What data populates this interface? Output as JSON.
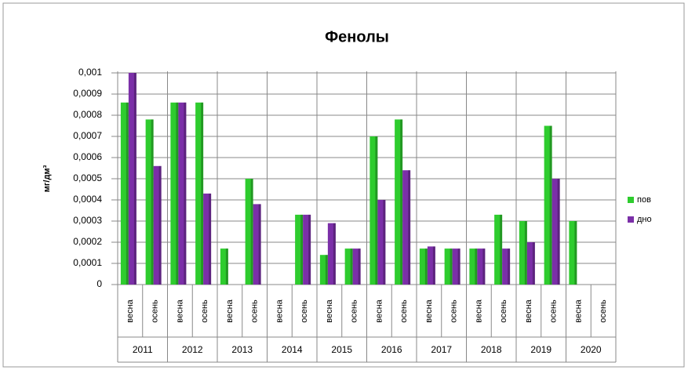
{
  "chart_data": {
    "type": "bar",
    "title": "Фенолы",
    "y_label": "мг/дм³",
    "categories": [
      "весна",
      "осень",
      "весна",
      "осень",
      "весна",
      "осень",
      "весна",
      "осень",
      "весна",
      "осень",
      "весна",
      "осень",
      "весна",
      "осень",
      "весна",
      "осень",
      "весна",
      "осень",
      "весна",
      "осень"
    ],
    "years": [
      "2011",
      "2012",
      "2013",
      "2014",
      "2015",
      "2016",
      "2017",
      "2018",
      "2019",
      "2020"
    ],
    "series": [
      {
        "name": "пов",
        "color": "#2ecc2e",
        "values": [
          0.00086,
          0.00078,
          0.00086,
          0.00086,
          0.00017,
          0.0005,
          0,
          0.00033,
          0.00014,
          0.00017,
          0.0007,
          0.00078,
          0.00017,
          0.00017,
          0.00017,
          0.00033,
          0.0003,
          0.00075,
          0.0003,
          0
        ]
      },
      {
        "name": "дно",
        "color": "#7b2fa8",
        "values": [
          0.001,
          0.00056,
          0.00086,
          0.00043,
          0,
          0.00038,
          0,
          0.00033,
          0.00029,
          0.00017,
          0.0004,
          0.00054,
          0.00018,
          0.00017,
          0.00017,
          0.00017,
          0.0002,
          0.0005,
          0,
          0
        ]
      }
    ],
    "ylim": [
      0,
      0.001
    ],
    "yticks": [
      0,
      {
        "value": 0.0001,
        "label": "0,0001"
      },
      {
        "value": 0.0002,
        "label": "0,0002"
      },
      {
        "value": 0.0003,
        "label": "0,0003"
      },
      {
        "value": 0.0004,
        "label": "0,0004"
      },
      {
        "value": 0.0005,
        "label": "0,0005"
      },
      {
        "value": 0.0006,
        "label": "0,0006"
      },
      {
        "value": 0.0007,
        "label": "0,0007"
      },
      {
        "value": 0.0008,
        "label": "0,0008"
      },
      {
        "value": 0.0009,
        "label": "0,0009"
      },
      {
        "value": 0.001,
        "label": "0,001"
      }
    ],
    "grid": true,
    "legend": "right"
  }
}
